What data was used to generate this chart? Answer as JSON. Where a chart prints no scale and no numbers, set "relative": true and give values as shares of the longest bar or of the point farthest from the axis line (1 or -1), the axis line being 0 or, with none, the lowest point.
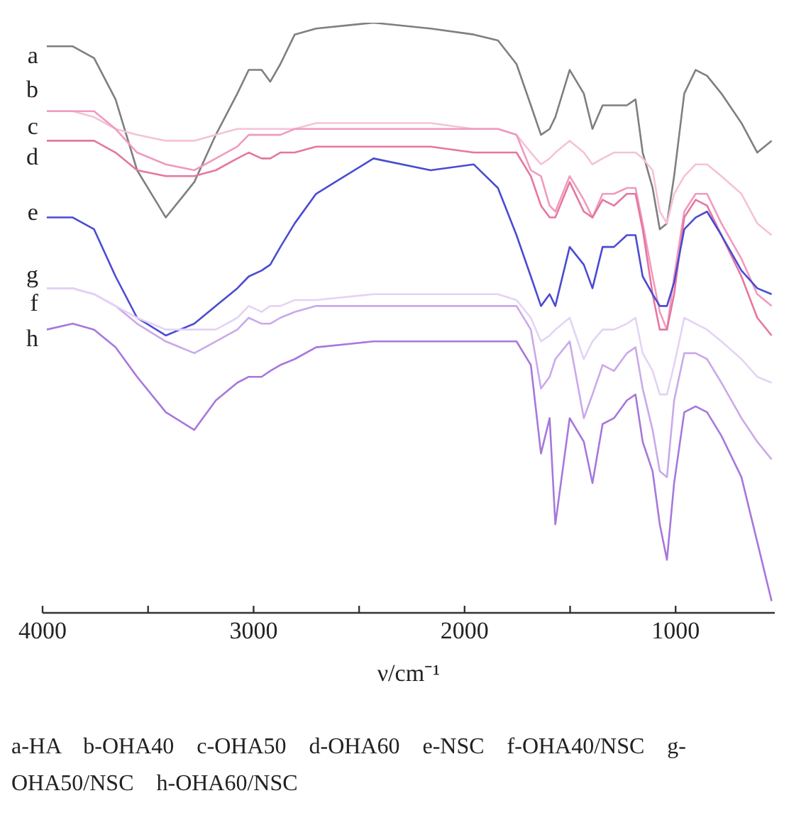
{
  "chart_data": {
    "type": "line",
    "relative": true,
    "xlabel": "ν/cm⁻¹",
    "xlim": [
      4000,
      530
    ],
    "xticks": [
      4000,
      {
        "value": 3500,
        "label": null
      },
      3000,
      {
        "value": 2500,
        "label": null
      },
      2000,
      {
        "value": 1500,
        "label": null
      },
      1000
    ],
    "x": [
      3980,
      3857,
      3756,
      3654,
      3552,
      3416,
      3281,
      3179,
      3077,
      3023,
      2962,
      2921,
      2873,
      2805,
      2704,
      2432,
      2161,
      1957,
      1842,
      1754,
      1686,
      1638,
      1597,
      1570,
      1502,
      1435,
      1394,
      1346,
      1292,
      1231,
      1190,
      1156,
      1109,
      1075,
      1041,
      1007,
      959,
      905,
      851,
      783,
      688,
      613,
      545
    ],
    "series": [
      {
        "name": "a",
        "color": "#7f7f7f",
        "values": [
          0.96,
          0.96,
          0.94,
          0.87,
          0.75,
          0.67,
          0.73,
          0.81,
          0.88,
          0.92,
          0.92,
          0.9,
          0.93,
          0.98,
          0.99,
          1.0,
          0.99,
          0.98,
          0.97,
          0.93,
          0.86,
          0.81,
          0.82,
          0.84,
          0.92,
          0.88,
          0.82,
          0.86,
          0.86,
          0.86,
          0.87,
          0.78,
          0.72,
          0.65,
          0.66,
          0.74,
          0.88,
          0.92,
          0.91,
          0.88,
          0.83,
          0.78,
          0.8
        ]
      },
      {
        "name": "b",
        "color": "#f5c2d8",
        "values": [
          0.85,
          0.85,
          0.84,
          0.82,
          0.81,
          0.8,
          0.8,
          0.81,
          0.82,
          0.82,
          0.82,
          0.82,
          0.82,
          0.82,
          0.83,
          0.83,
          0.83,
          0.82,
          0.82,
          0.81,
          0.78,
          0.76,
          0.77,
          0.78,
          0.8,
          0.78,
          0.76,
          0.77,
          0.78,
          0.78,
          0.78,
          0.77,
          0.75,
          0.68,
          0.66,
          0.71,
          0.74,
          0.76,
          0.76,
          0.74,
          0.71,
          0.66,
          0.64
        ]
      },
      {
        "name": "c",
        "color": "#f09ac0",
        "values": [
          0.85,
          0.85,
          0.85,
          0.82,
          0.78,
          0.76,
          0.75,
          0.77,
          0.79,
          0.81,
          0.81,
          0.81,
          0.81,
          0.82,
          0.82,
          0.82,
          0.82,
          0.82,
          0.82,
          0.81,
          0.75,
          0.74,
          0.69,
          0.68,
          0.74,
          0.7,
          0.67,
          0.71,
          0.71,
          0.72,
          0.72,
          0.66,
          0.57,
          0.51,
          0.48,
          0.57,
          0.68,
          0.71,
          0.71,
          0.66,
          0.6,
          0.54,
          0.52
        ]
      },
      {
        "name": "d",
        "color": "#e5779f",
        "values": [
          0.8,
          0.8,
          0.8,
          0.78,
          0.75,
          0.74,
          0.74,
          0.75,
          0.77,
          0.78,
          0.77,
          0.77,
          0.78,
          0.78,
          0.79,
          0.79,
          0.79,
          0.78,
          0.78,
          0.78,
          0.74,
          0.69,
          0.67,
          0.67,
          0.73,
          0.68,
          0.67,
          0.7,
          0.69,
          0.71,
          0.71,
          0.65,
          0.54,
          0.48,
          0.48,
          0.54,
          0.67,
          0.7,
          0.69,
          0.64,
          0.57,
          0.5,
          0.47
        ]
      },
      {
        "name": "e",
        "color": "#4b4bd2",
        "values": [
          0.67,
          0.67,
          0.65,
          0.57,
          0.5,
          0.47,
          0.49,
          0.52,
          0.55,
          0.57,
          0.58,
          0.59,
          0.62,
          0.66,
          0.71,
          0.77,
          0.75,
          0.76,
          0.72,
          0.64,
          0.57,
          0.52,
          0.54,
          0.52,
          0.62,
          0.59,
          0.55,
          0.62,
          0.62,
          0.64,
          0.64,
          0.57,
          0.54,
          0.52,
          0.52,
          0.56,
          0.65,
          0.67,
          0.68,
          0.64,
          0.58,
          0.55,
          0.54
        ]
      },
      {
        "name": "f",
        "color": "#c9a9ea",
        "values": [
          0.55,
          0.55,
          0.54,
          0.52,
          0.49,
          0.46,
          0.44,
          0.46,
          0.48,
          0.5,
          0.49,
          0.49,
          0.5,
          0.51,
          0.52,
          0.52,
          0.52,
          0.52,
          0.52,
          0.52,
          0.48,
          0.38,
          0.4,
          0.43,
          0.46,
          0.33,
          0.37,
          0.42,
          0.41,
          0.44,
          0.45,
          0.38,
          0.31,
          0.24,
          0.23,
          0.36,
          0.44,
          0.44,
          0.43,
          0.39,
          0.33,
          0.29,
          0.26
        ]
      },
      {
        "name": "g",
        "color": "#e4d3f5",
        "values": [
          0.55,
          0.55,
          0.54,
          0.52,
          0.5,
          0.48,
          0.48,
          0.48,
          0.5,
          0.52,
          0.51,
          0.52,
          0.52,
          0.53,
          0.53,
          0.54,
          0.54,
          0.54,
          0.54,
          0.53,
          0.5,
          0.46,
          0.47,
          0.48,
          0.5,
          0.43,
          0.46,
          0.48,
          0.48,
          0.49,
          0.5,
          0.44,
          0.41,
          0.37,
          0.37,
          0.42,
          0.5,
          0.49,
          0.48,
          0.46,
          0.43,
          0.4,
          0.39
        ]
      },
      {
        "name": "h",
        "color": "#a777dd",
        "values": [
          0.48,
          0.49,
          0.48,
          0.45,
          0.4,
          0.34,
          0.31,
          0.36,
          0.39,
          0.4,
          0.4,
          0.41,
          0.42,
          0.43,
          0.45,
          0.46,
          0.46,
          0.46,
          0.46,
          0.46,
          0.42,
          0.27,
          0.33,
          0.15,
          0.33,
          0.29,
          0.22,
          0.32,
          0.33,
          0.36,
          0.37,
          0.29,
          0.24,
          0.15,
          0.09,
          0.22,
          0.34,
          0.35,
          0.34,
          0.3,
          0.23,
          0.12,
          0.02
        ]
      }
    ],
    "annotations": [
      "a-HA    b-OHA40    c-OHA50    d-OHA60    e-NSC    f-OHA40/NSC    g-OHA50/NSC    h-OHA60/NSC"
    ]
  }
}
